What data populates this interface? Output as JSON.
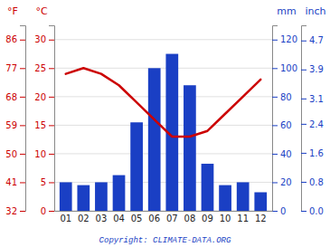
{
  "chart_data": {
    "type": "bar",
    "categories": [
      "01",
      "02",
      "03",
      "04",
      "05",
      "06",
      "07",
      "08",
      "09",
      "10",
      "11",
      "12"
    ],
    "series": [
      {
        "type": "bar",
        "axis": "y2",
        "color": "#1a3fc4",
        "values": [
          20,
          18,
          20,
          25,
          62,
          100,
          110,
          88,
          33,
          18,
          20,
          13
        ]
      },
      {
        "type": "line",
        "color": "#cc0000",
        "values": [
          24,
          25,
          24,
          22,
          19,
          16,
          13,
          13,
          14,
          17,
          20,
          23
        ]
      }
    ],
    "ylabel": "°C",
    "ylim": [
      0,
      32.5
    ],
    "yticks": [
      0,
      5,
      10,
      15,
      20,
      25,
      30
    ],
    "y2label": "mm",
    "y2lim": [
      0,
      130
    ],
    "y2ticks": [
      0,
      20,
      40,
      60,
      80,
      100,
      120
    ],
    "y3label": "°F",
    "y3ticks": [
      {
        "value": 0,
        "label": "32"
      },
      {
        "value": 5,
        "label": "41"
      },
      {
        "value": 10,
        "label": "50"
      },
      {
        "value": 15,
        "label": "59"
      },
      {
        "value": 20,
        "label": "68"
      },
      {
        "value": 25,
        "label": "77"
      },
      {
        "value": 30,
        "label": "86"
      }
    ],
    "y4label": "inch",
    "y4ticks": [
      {
        "value": 0,
        "label": "0.0"
      },
      {
        "value": 20.32,
        "label": "0.8"
      },
      {
        "value": 40.64,
        "label": "1.6"
      },
      {
        "value": 60.96,
        "label": "2.4"
      },
      {
        "value": 78.74,
        "label": "3.1"
      },
      {
        "value": 99.06,
        "label": "3.9"
      },
      {
        "value": 119.38,
        "label": "4.7"
      }
    ],
    "caption": "Copyright: CLIMATE-DATA.ORG",
    "grid": true
  }
}
